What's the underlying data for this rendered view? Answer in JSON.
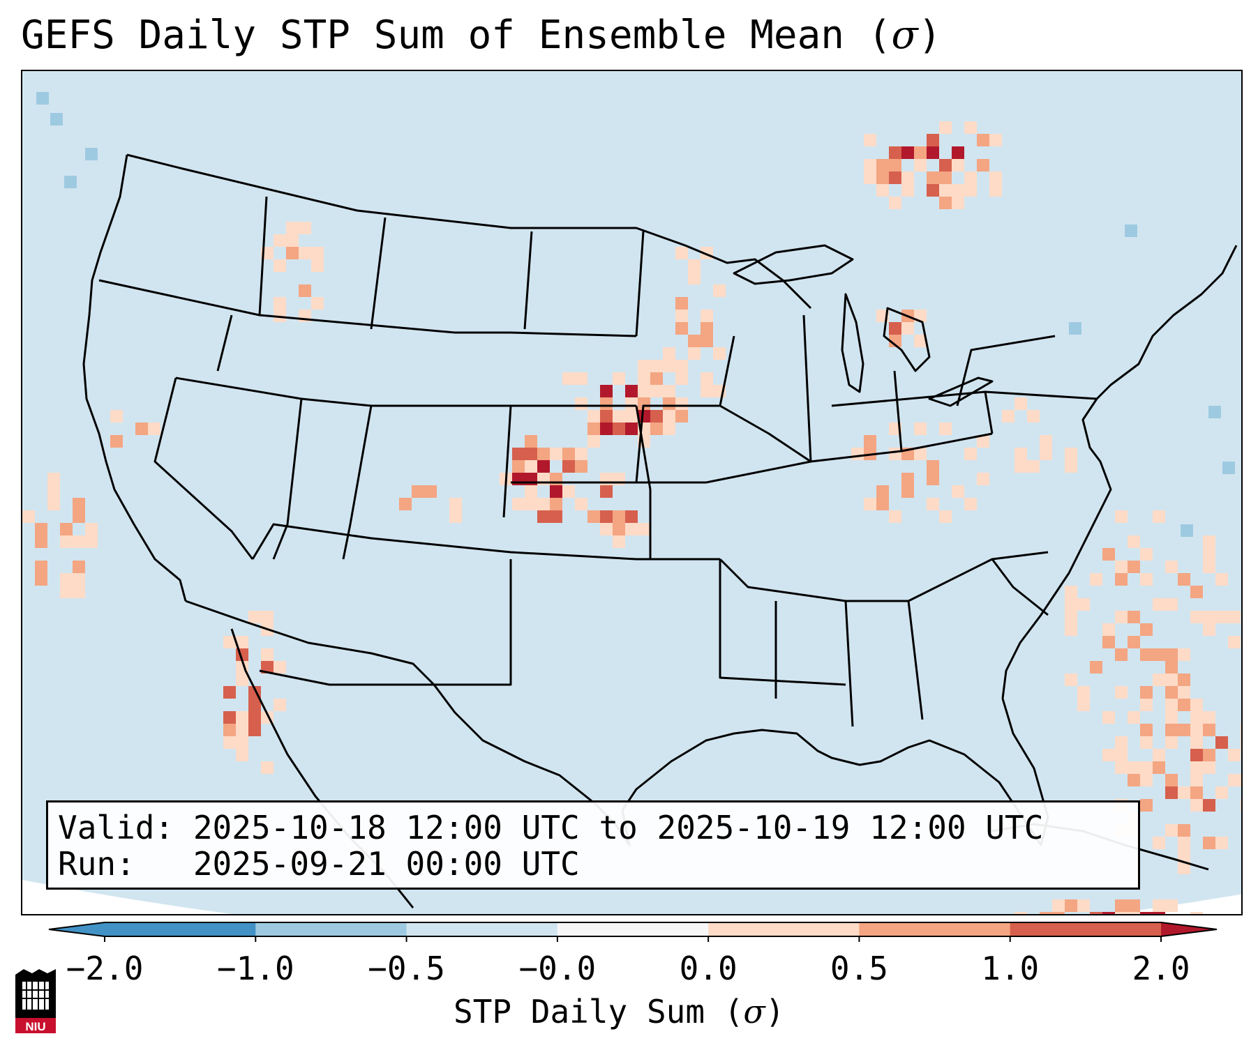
{
  "title": {
    "prefix": "GEFS Daily STP Sum of Ensemble Mean (",
    "symbol": "σ",
    "suffix": ")"
  },
  "info": {
    "valid_line": "Valid: 2025-10-18 12:00 UTC to 2025-10-19 12:00 UTC",
    "run_line": "Run:   2025-09-21 00:00 UTC"
  },
  "colorbar": {
    "label_prefix": "STP Daily Sum (",
    "label_symbol": "σ",
    "label_suffix": ")",
    "ticks": [
      "−2.0",
      "−1.0",
      "−0.5",
      "−0.0",
      "0.0",
      "0.5",
      "1.0",
      "2.0"
    ],
    "colors": [
      "#4292c6",
      "#9ecae1",
      "#d1e5f0",
      "#f7f7f7",
      "#fddbc7",
      "#f4a582",
      "#d6604d",
      "#b2182b"
    ],
    "extend": "both"
  },
  "logo": {
    "text": "NIU",
    "color": "#c8102e"
  },
  "map": {
    "background_color": "#d1e5f0",
    "features": [
      "state-borders",
      "coastlines",
      "country-borders"
    ],
    "hotspots": [
      {
        "region": "Kansas / Nebraska",
        "level": "1.0 to 2.0"
      },
      {
        "region": "Quebec",
        "level": "1.0 to 2.0"
      },
      {
        "region": "Caribbean",
        "level": "1.0 to 2.0"
      },
      {
        "region": "Michigan",
        "level": "0.5 to 1.0"
      },
      {
        "region": "Baja California",
        "level": "0.5 to 1.0"
      }
    ]
  }
}
